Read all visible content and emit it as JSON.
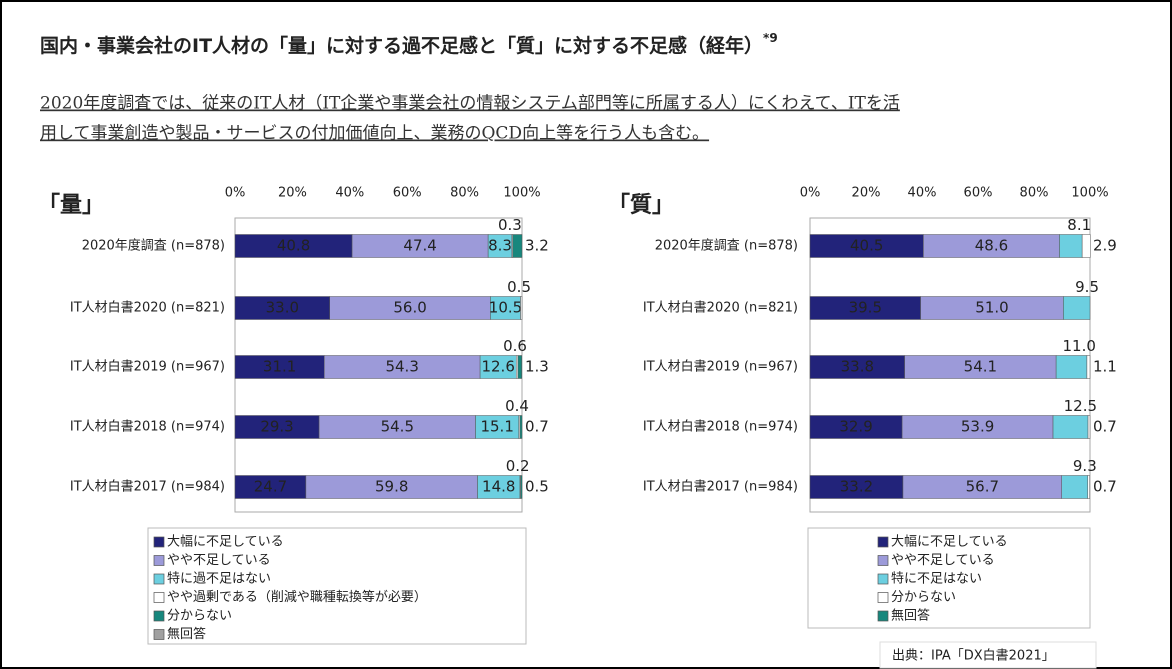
{
  "title": "国内・事業会社のIT人材の「量」に対する過不足感と「質」に対する不足感（経年）",
  "title_note": "*9",
  "subtitle": [
    "2020年度調査では、従来のIT人材（IT企業や事業会社の情報システム部門等に所属する人）にくわえて、ITを活",
    "用して事業創造や製品・サービスの付加価値向上、業務のQCD向上等を行う人も含む。"
  ],
  "source": "出典：IPA「DX白書2021」",
  "chart_data": [
    {
      "type": "bar",
      "orientation": "horizontal",
      "stacked": true,
      "title": "「量」",
      "categories": [
        "2020年度調査 (n=878)",
        "IT人材白書2020 (n=821)",
        "IT人材白書2019 (n=967)",
        "IT人材白書2018 (n=974)",
        "IT人材白書2017 (n=984)"
      ],
      "series": [
        {
          "name": "大幅に不足している",
          "color": "#22237a",
          "values": [
            40.8,
            33.0,
            31.1,
            29.3,
            24.7
          ],
          "value_labels": [
            "40.8",
            "33.0",
            "31.1",
            "29.3",
            "24.7"
          ]
        },
        {
          "name": "やや不足している",
          "color": "#9c9ad9",
          "values": [
            47.4,
            56.0,
            54.3,
            54.5,
            59.8
          ],
          "value_labels": [
            "47.4",
            "56.0",
            "54.3",
            "54.5",
            "59.8"
          ]
        },
        {
          "name": "特に過不足はない",
          "color": "#6ccfe0",
          "values": [
            8.3,
            10.5,
            12.6,
            15.1,
            14.8
          ],
          "value_labels": [
            "8.3",
            "10.5",
            "12.6",
            "15.1",
            "14.8"
          ]
        },
        {
          "name": "やや過剰である（削減や職種転換等が必要）",
          "color": "#ffffff",
          "values": [
            0.3,
            0.5,
            0.6,
            0.4,
            0.2
          ],
          "value_labels": [
            "0.3",
            "0.5",
            "0.6",
            "0.4",
            "0.2"
          ]
        },
        {
          "name": "分からない",
          "color": "#17877d",
          "values": [
            3.2,
            null,
            1.3,
            0.7,
            0.5
          ],
          "value_labels": [
            "3.2",
            null,
            "1.3",
            "0.7",
            "0.5"
          ]
        },
        {
          "name": "無回答",
          "color": "#a0a0a0",
          "values": [
            null,
            null,
            null,
            null,
            null
          ]
        }
      ],
      "xlim": [
        0,
        100
      ],
      "xticks": [
        {
          "value": 0,
          "label": "0%"
        },
        {
          "value": 20,
          "label": "20%"
        },
        {
          "value": 40,
          "label": "40%"
        },
        {
          "value": 60,
          "label": "60%"
        },
        {
          "value": 80,
          "label": "80%"
        },
        {
          "value": 100,
          "label": "100%"
        }
      ]
    },
    {
      "type": "bar",
      "orientation": "horizontal",
      "stacked": true,
      "title": "「質」",
      "categories": [
        "2020年度調査 (n=878)",
        "IT人材白書2020 (n=821)",
        "IT人材白書2019 (n=967)",
        "IT人材白書2018 (n=974)",
        "IT人材白書2017 (n=984)"
      ],
      "series": [
        {
          "name": "大幅に不足している",
          "color": "#22237a",
          "values": [
            40.5,
            39.5,
            33.8,
            32.9,
            33.2
          ],
          "value_labels": [
            "40.5",
            "39.5",
            "33.8",
            "32.9",
            "33.2"
          ]
        },
        {
          "name": "やや不足している",
          "color": "#9c9ad9",
          "values": [
            48.6,
            51.0,
            54.1,
            53.9,
            56.7
          ],
          "value_labels": [
            "48.6",
            "51.0",
            "54.1",
            "53.9",
            "56.7"
          ]
        },
        {
          "name": "特に不足はない",
          "color": "#6ccfe0",
          "values": [
            8.1,
            9.5,
            11.0,
            12.5,
            9.3
          ],
          "value_labels": [
            "8.1",
            "9.5",
            "11.0",
            "12.5",
            "9.3"
          ]
        },
        {
          "name": "分からない",
          "color": "#ffffff",
          "values": [
            2.9,
            null,
            1.1,
            0.7,
            0.7
          ],
          "value_labels": [
            "2.9",
            null,
            "1.1",
            "0.7",
            "0.7"
          ]
        },
        {
          "name": "無回答",
          "color": "#17877d",
          "values": [
            null,
            null,
            null,
            null,
            null
          ]
        }
      ],
      "xlim": [
        0,
        100
      ],
      "xticks": [
        {
          "value": 0,
          "label": "0%"
        },
        {
          "value": 20,
          "label": "20%"
        },
        {
          "value": 40,
          "label": "40%"
        },
        {
          "value": 60,
          "label": "60%"
        },
        {
          "value": 80,
          "label": "80%"
        },
        {
          "value": 100,
          "label": "100%"
        }
      ]
    }
  ]
}
